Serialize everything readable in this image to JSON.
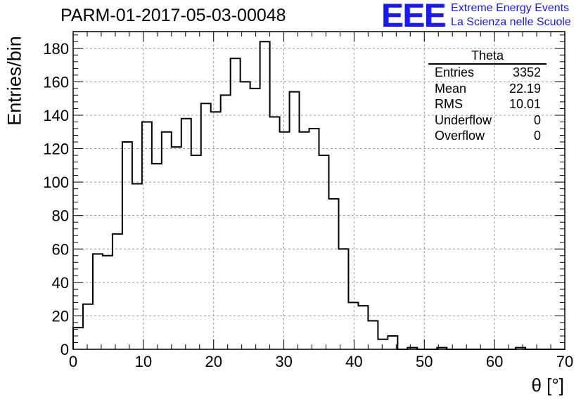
{
  "chart_data": {
    "type": "histogram",
    "title": "PARM-01-2017-05-03-00048",
    "xlabel": "θ [°]",
    "ylabel": "Entries/bin",
    "xlim": [
      0,
      70
    ],
    "ylim": [
      0,
      190
    ],
    "grid": true,
    "bin_width": 1.4,
    "x_ticks": [
      "0",
      "10",
      "20",
      "30",
      "40",
      "50",
      "60",
      "70"
    ],
    "y_ticks": [
      "0",
      "20",
      "40",
      "60",
      "80",
      "100",
      "120",
      "140",
      "160",
      "180"
    ],
    "values": [
      13,
      27,
      57,
      56,
      69,
      124,
      99,
      136,
      111,
      130,
      121,
      138,
      116,
      147,
      142,
      152,
      174,
      160,
      156,
      184,
      139,
      130,
      154,
      130,
      132,
      116,
      90,
      60,
      28,
      26,
      17,
      6,
      8,
      0,
      1,
      0,
      0,
      1,
      0,
      0,
      0,
      0,
      0,
      0,
      0,
      1,
      0,
      0,
      0,
      0
    ]
  },
  "stats_box": {
    "title": "Theta",
    "rows": [
      {
        "label": "Entries",
        "value": "3352"
      },
      {
        "label": "Mean",
        "value": "22.19"
      },
      {
        "label": "RMS",
        "value": "10.01"
      },
      {
        "label": "Underflow",
        "value": "0"
      },
      {
        "label": "Overflow",
        "value": "0"
      }
    ]
  },
  "logo": {
    "mark": "EEE",
    "line1": "Extreme Energy Events",
    "line2": "La Scienza nelle Scuole"
  },
  "colors": {
    "histogram_line": "#000000",
    "logo": "#1a1aee",
    "grid": "#9a9a9a"
  }
}
